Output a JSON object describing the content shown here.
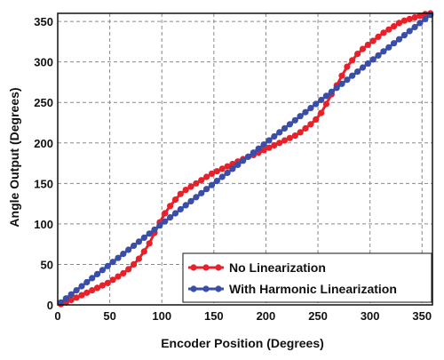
{
  "chart_data": {
    "type": "line",
    "xlabel": "Encoder Position (Degrees)",
    "ylabel": "Angle Output (Degrees)",
    "xlim": [
      0,
      360
    ],
    "ylim": [
      0,
      360
    ],
    "xticks": [
      0,
      50,
      100,
      150,
      200,
      250,
      300,
      350
    ],
    "yticks": [
      0,
      50,
      100,
      150,
      200,
      250,
      300,
      350
    ],
    "grid": true,
    "legend_position": "bottom-right",
    "series": [
      {
        "name": "No Linearization",
        "color": "#e8202a",
        "x": [
          3,
          8,
          13,
          18,
          23,
          28,
          33,
          38,
          43,
          48,
          53,
          58,
          63,
          68,
          73,
          78,
          83,
          88,
          93,
          98,
          103,
          108,
          113,
          118,
          123,
          128,
          133,
          138,
          143,
          148,
          153,
          158,
          163,
          168,
          173,
          178,
          183,
          188,
          193,
          198,
          203,
          208,
          213,
          218,
          223,
          228,
          233,
          238,
          243,
          248,
          253,
          258,
          263,
          268,
          273,
          278,
          283,
          288,
          293,
          298,
          303,
          308,
          313,
          318,
          323,
          328,
          333,
          338,
          343,
          348,
          353,
          358
        ],
        "y": [
          1,
          3,
          6,
          9,
          12,
          15,
          18,
          21,
          24,
          27,
          31,
          35,
          39,
          44,
          50,
          57,
          66,
          76,
          89,
          102,
          113,
          122,
          130,
          137,
          142,
          146,
          150,
          154,
          158,
          162,
          165,
          168,
          171,
          174,
          177,
          180,
          183,
          185,
          188,
          191,
          194,
          197,
          200,
          203,
          206,
          209,
          213,
          218,
          223,
          229,
          237,
          248,
          260,
          271,
          283,
          294,
          302,
          310,
          316,
          321,
          326,
          331,
          336,
          340,
          344,
          348,
          351,
          353,
          355,
          357,
          359,
          360
        ]
      },
      {
        "name": "With Harmonic Linearization",
        "color": "#3a4ea8",
        "x": [
          3,
          8,
          13,
          18,
          23,
          28,
          33,
          38,
          43,
          48,
          53,
          58,
          63,
          68,
          73,
          78,
          83,
          88,
          93,
          98,
          103,
          108,
          113,
          118,
          123,
          128,
          133,
          138,
          143,
          148,
          153,
          158,
          163,
          168,
          173,
          178,
          183,
          188,
          193,
          198,
          203,
          208,
          213,
          218,
          223,
          228,
          233,
          238,
          243,
          248,
          253,
          258,
          263,
          268,
          273,
          278,
          283,
          288,
          293,
          298,
          303,
          308,
          313,
          318,
          323,
          328,
          333,
          338,
          343,
          348,
          353,
          358
        ],
        "y": [
          3,
          8,
          13,
          18,
          23,
          28,
          33,
          38,
          43,
          48,
          53,
          58,
          63,
          68,
          73,
          78,
          83,
          88,
          93,
          98,
          103,
          108,
          113,
          118,
          123,
          128,
          133,
          138,
          143,
          148,
          153,
          158,
          163,
          168,
          173,
          178,
          183,
          188,
          193,
          198,
          203,
          208,
          213,
          218,
          223,
          228,
          233,
          238,
          243,
          248,
          253,
          258,
          263,
          268,
          273,
          278,
          283,
          288,
          293,
          298,
          303,
          308,
          313,
          318,
          323,
          328,
          333,
          338,
          343,
          348,
          353,
          358
        ]
      }
    ]
  }
}
